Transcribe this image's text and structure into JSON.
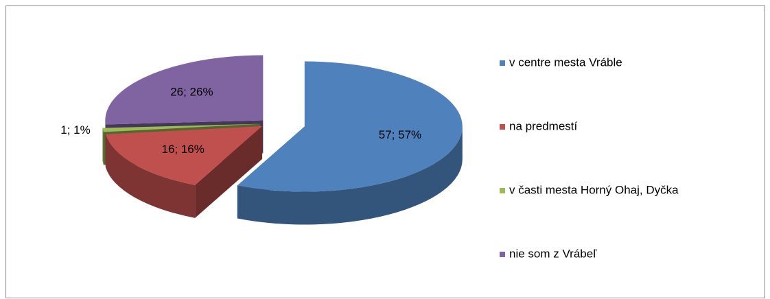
{
  "chart_data": {
    "type": "pie",
    "categories": [
      "v centre mesta Vráble",
      "na predmestí",
      "v časti mesta Horný Ohaj, Dyčka",
      "nie som z Vrábeľ"
    ],
    "values": [
      57,
      16,
      1,
      26
    ],
    "value_labels": [
      "57; 57%",
      "16; 16%",
      "1; 1%",
      "26; 26%"
    ],
    "colors": [
      "#4f81bd",
      "#c0504d",
      "#9bbb59",
      "#8064a2"
    ],
    "legend": "right"
  }
}
